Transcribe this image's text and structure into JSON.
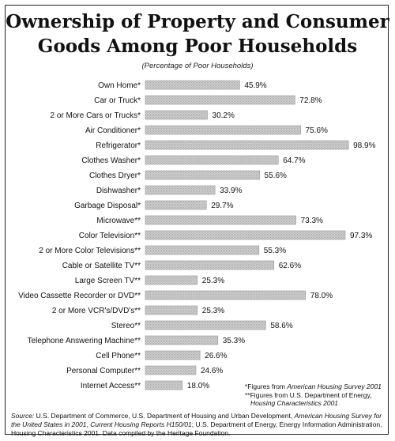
{
  "chart_data": {
    "type": "bar",
    "orientation": "horizontal",
    "title_line1": "Ownership of Property and Consumer",
    "title_line2": "Goods Among Poor Households",
    "subtitle": "(Percentage of Poor Households)",
    "categories": [
      "Own Home*",
      "Car or Truck*",
      "2 or More Cars or Trucks*",
      "Air Conditioner*",
      "Refrigerator*",
      "Clothes Washer*",
      "Clothes Dryer*",
      "Dishwasher*",
      "Garbage Disposal*",
      "Microwave**",
      "Color Television**",
      "2 or More Color Televisions**",
      "Cable or Satellite TV**",
      "Large Screen TV**",
      "Video Cassette Recorder or DVD**",
      "2 or More VCR's/DVD's**",
      "Stereo**",
      "Telephone Answering Machine**",
      "Cell Phone**",
      "Personal Computer**",
      "Internet Access**"
    ],
    "values": [
      45.9,
      72.8,
      30.2,
      75.6,
      98.9,
      64.7,
      55.6,
      33.9,
      29.7,
      73.3,
      97.3,
      55.3,
      62.6,
      25.3,
      78.0,
      25.3,
      58.6,
      35.3,
      26.6,
      24.6,
      18.0
    ],
    "value_labels": [
      "45.9%",
      "72.8%",
      "30.2%",
      "75.6%",
      "98.9%",
      "64.7%",
      "55.6%",
      "33.9%",
      "29.7%",
      "73.3%",
      "97.3%",
      "55.3%",
      "62.6%",
      "25.3%",
      "78.0%",
      "25.3%",
      "58.6%",
      "35.3%",
      "26.6%",
      "24.6%",
      "18.0%"
    ],
    "xlim": [
      0,
      100
    ],
    "grid": false,
    "bar_color": "#c8c8c8"
  },
  "notes": {
    "note1_mark": "*Figures from ",
    "note1_source": "American Housing Survey 2001",
    "note2": "**Figures from U.S. Department of Energy,",
    "note3": "Housing Characteristics 2001"
  },
  "source": {
    "label": "Source:",
    "text": " U.S. Department of Commerce, U.S. Department of Housing and Urban Development, ",
    "pub1": "American Housing Survey for the United States in 2001",
    "text2": ", ",
    "pub2": "Current Housing Reports H150/01",
    "text3": "; U.S. Department of Energy, Energy Information Administration, ",
    "pub3": "Housing Characteristics 2001",
    "text4": ". Data compiled by the Heritage Foundation."
  }
}
